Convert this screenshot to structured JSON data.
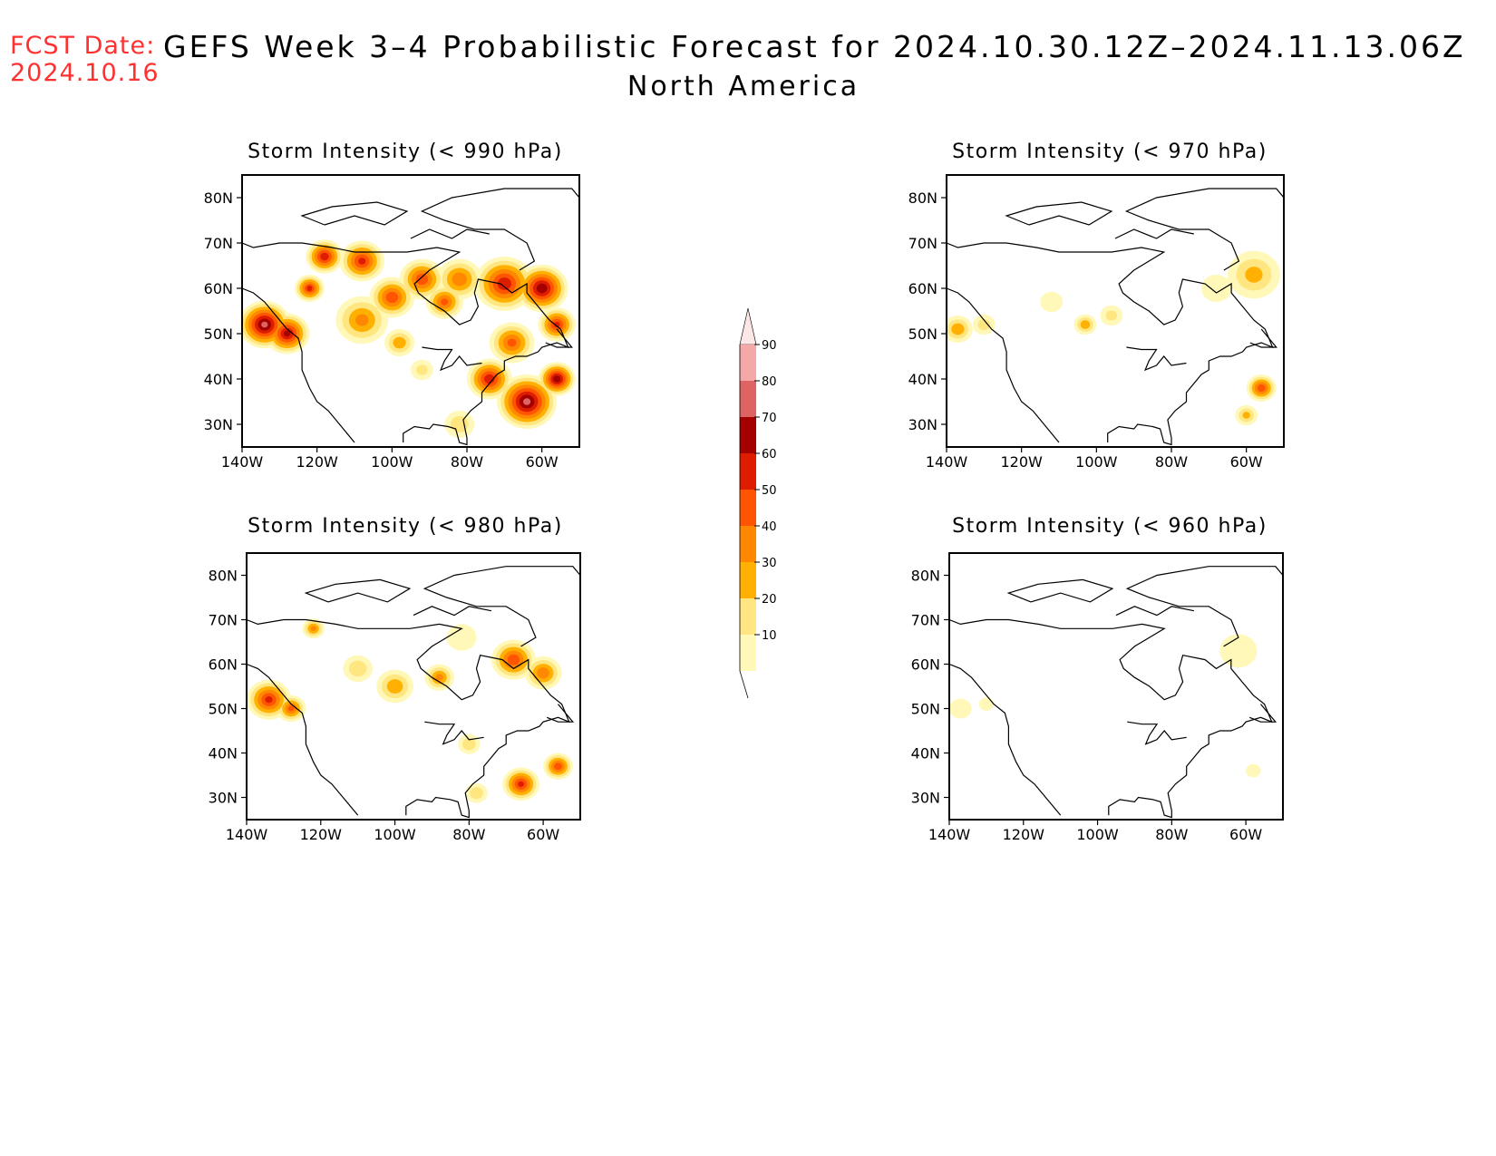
{
  "header": {
    "fcst_label": "FCST Date:",
    "fcst_date": "2024.10.16",
    "title": "GEFS Week 3–4 Probabilistic Forecast for 2024.10.30.12Z–2024.11.13.06Z",
    "subtitle": "North America"
  },
  "axes": {
    "lat_ticks": [
      "80N",
      "70N",
      "60N",
      "50N",
      "40N",
      "30N"
    ],
    "lon_ticks": [
      "140W",
      "120W",
      "100W",
      "80W",
      "60W"
    ],
    "lat_range": [
      25,
      85
    ],
    "lon_range": [
      -140,
      -50
    ]
  },
  "colorbar": {
    "levels": [
      "10",
      "20",
      "30",
      "40",
      "50",
      "60",
      "70",
      "80",
      "90"
    ],
    "colors": [
      "#fff8b8",
      "#ffe680",
      "#ffb000",
      "#ff8800",
      "#ff5500",
      "#dd1c00",
      "#a50000",
      "#de6464",
      "#f4a8a8",
      "#fce6e6"
    ]
  },
  "panels": [
    {
      "title": "Storm Intensity (< 990 hPa)",
      "blobs": [
        {
          "lon": -134,
          "lat": 52,
          "r": 7,
          "p": 80
        },
        {
          "lon": -128,
          "lat": 50,
          "r": 6,
          "p": 70
        },
        {
          "lon": -122,
          "lat": 60,
          "r": 4,
          "p": 60
        },
        {
          "lon": -118,
          "lat": 67,
          "r": 5,
          "p": 65
        },
        {
          "lon": -108,
          "lat": 66,
          "r": 6,
          "p": 60
        },
        {
          "lon": -100,
          "lat": 58,
          "r": 6,
          "p": 55
        },
        {
          "lon": -92,
          "lat": 62,
          "r": 6,
          "p": 55
        },
        {
          "lon": -86,
          "lat": 57,
          "r": 5,
          "p": 50
        },
        {
          "lon": -108,
          "lat": 53,
          "r": 7,
          "p": 40
        },
        {
          "lon": -98,
          "lat": 48,
          "r": 4,
          "p": 35
        },
        {
          "lon": -82,
          "lat": 62,
          "r": 6,
          "p": 45
        },
        {
          "lon": -70,
          "lat": 61,
          "r": 8,
          "p": 65
        },
        {
          "lon": -60,
          "lat": 60,
          "r": 7,
          "p": 75
        },
        {
          "lon": -56,
          "lat": 52,
          "r": 5,
          "p": 60
        },
        {
          "lon": -68,
          "lat": 48,
          "r": 6,
          "p": 50
        },
        {
          "lon": -74,
          "lat": 40,
          "r": 6,
          "p": 65
        },
        {
          "lon": -64,
          "lat": 35,
          "r": 8,
          "p": 80
        },
        {
          "lon": -56,
          "lat": 40,
          "r": 5,
          "p": 75
        },
        {
          "lon": -82,
          "lat": 30,
          "r": 4,
          "p": 25
        },
        {
          "lon": -92,
          "lat": 42,
          "r": 3,
          "p": 20
        }
      ]
    },
    {
      "title": "Storm Intensity (< 970 hPa)",
      "blobs": [
        {
          "lon": -137,
          "lat": 51,
          "r": 4,
          "p": 35
        },
        {
          "lon": -130,
          "lat": 52,
          "r": 3,
          "p": 22
        },
        {
          "lon": -103,
          "lat": 52,
          "r": 3,
          "p": 35
        },
        {
          "lon": -96,
          "lat": 54,
          "r": 3,
          "p": 20
        },
        {
          "lon": -112,
          "lat": 57,
          "r": 3,
          "p": 15
        },
        {
          "lon": -58,
          "lat": 63,
          "r": 7,
          "p": 30
        },
        {
          "lon": -68,
          "lat": 60,
          "r": 4,
          "p": 18
        },
        {
          "lon": -56,
          "lat": 38,
          "r": 4,
          "p": 55
        },
        {
          "lon": -60,
          "lat": 32,
          "r": 3,
          "p": 30
        }
      ]
    },
    {
      "title": "Storm Intensity (< 980 hPa)",
      "blobs": [
        {
          "lon": -134,
          "lat": 52,
          "r": 6,
          "p": 60
        },
        {
          "lon": -128,
          "lat": 50,
          "r": 4,
          "p": 50
        },
        {
          "lon": -122,
          "lat": 68,
          "r": 3,
          "p": 40
        },
        {
          "lon": -110,
          "lat": 59,
          "r": 4,
          "p": 25
        },
        {
          "lon": -100,
          "lat": 55,
          "r": 5,
          "p": 35
        },
        {
          "lon": -88,
          "lat": 57,
          "r": 4,
          "p": 40
        },
        {
          "lon": -82,
          "lat": 66,
          "r": 4,
          "p": 18
        },
        {
          "lon": -68,
          "lat": 61,
          "r": 6,
          "p": 55
        },
        {
          "lon": -60,
          "lat": 58,
          "r": 5,
          "p": 45
        },
        {
          "lon": -80,
          "lat": 42,
          "r": 3,
          "p": 25
        },
        {
          "lon": -66,
          "lat": 33,
          "r": 5,
          "p": 60
        },
        {
          "lon": -56,
          "lat": 37,
          "r": 4,
          "p": 55
        },
        {
          "lon": -78,
          "lat": 31,
          "r": 3,
          "p": 25
        }
      ]
    },
    {
      "title": "Storm Intensity (< 960 hPa)",
      "blobs": [
        {
          "lon": -137,
          "lat": 50,
          "r": 3,
          "p": 15
        },
        {
          "lon": -130,
          "lat": 51,
          "r": 2,
          "p": 15
        },
        {
          "lon": -62,
          "lat": 63,
          "r": 5,
          "p": 15
        },
        {
          "lon": -58,
          "lat": 36,
          "r": 2,
          "p": 15
        }
      ]
    }
  ]
}
